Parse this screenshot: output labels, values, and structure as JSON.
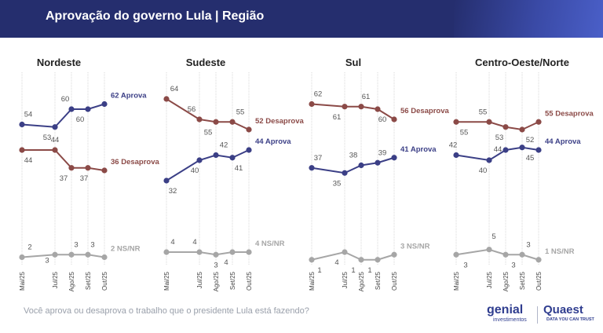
{
  "title": "Aprovação do governo Lula | Região",
  "footer_question": "Você aprova ou desaprova o trabalho que o presidente Lula está fazendo?",
  "logos": {
    "genial": "genial",
    "genial_sub": "investimentos",
    "quaest": "Quaest",
    "quaest_sub": "DATA YOU CAN TRUST"
  },
  "colors": {
    "header": "#252e6e",
    "aprova": "#3b3f86",
    "desaprova": "#8b4a47",
    "nsnr": "#a6a6a6"
  },
  "chart_data": [
    {
      "type": "line",
      "title": "Nordeste",
      "x": [
        "Mai/25",
        "Jul/25",
        "Ago/25",
        "Set/25",
        "Out/25"
      ],
      "ylim": [
        0,
        70
      ],
      "series": [
        {
          "name": "Aprova",
          "values": [
            54,
            53,
            60,
            60,
            62
          ],
          "end_label": "62 Aprova"
        },
        {
          "name": "Desaprova",
          "values": [
            44,
            44,
            37,
            37,
            36
          ],
          "end_label": "36 Desaprova"
        },
        {
          "name": "NS/NR",
          "values": [
            2,
            3,
            3,
            3,
            2
          ],
          "end_label": "2 NS/NR"
        }
      ]
    },
    {
      "type": "line",
      "title": "Sudeste",
      "x": [
        "Mai/25",
        "Jul/25",
        "Ago/25",
        "Set/25",
        "Out/25"
      ],
      "ylim": [
        0,
        70
      ],
      "series": [
        {
          "name": "Aprova",
          "values": [
            32,
            40,
            42,
            41,
            44
          ],
          "end_label": "44 Aprova"
        },
        {
          "name": "Desaprova",
          "values": [
            64,
            56,
            55,
            55,
            52
          ],
          "end_label": "52 Desaprova"
        },
        {
          "name": "NS/NR",
          "values": [
            4,
            4,
            3,
            4,
            4
          ],
          "end_label": "4 NS/NR"
        }
      ]
    },
    {
      "type": "line",
      "title": "Sul",
      "x": [
        "Mai/25",
        "Jul/25",
        "Ago/25",
        "Set/25",
        "Out/25"
      ],
      "ylim": [
        0,
        70
      ],
      "series": [
        {
          "name": "Aprova",
          "values": [
            37,
            35,
            38,
            39,
            41
          ],
          "end_label": "41 Aprova"
        },
        {
          "name": "Desaprova",
          "values": [
            62,
            61,
            61,
            60,
            56
          ],
          "end_label": "56 Desaprova"
        },
        {
          "name": "NS/NR",
          "values": [
            1,
            4,
            1,
            1,
            3
          ],
          "end_label": "3 NS/NR"
        }
      ]
    },
    {
      "type": "line",
      "title": "Centro-Oeste/Norte",
      "x": [
        "Mai/25",
        "Jul/25",
        "Ago/25",
        "Set/25",
        "Out/25"
      ],
      "ylim": [
        0,
        70
      ],
      "series": [
        {
          "name": "Aprova",
          "values": [
            42,
            40,
            44,
            45,
            44
          ],
          "end_label": "44 Aprova"
        },
        {
          "name": "Desaprova",
          "values": [
            55,
            55,
            53,
            52,
            55
          ],
          "end_label": "55 Desaprova"
        },
        {
          "name": "NS/NR",
          "values": [
            3,
            5,
            3,
            3,
            1
          ],
          "end_label": "1 NS/NR"
        }
      ]
    }
  ]
}
